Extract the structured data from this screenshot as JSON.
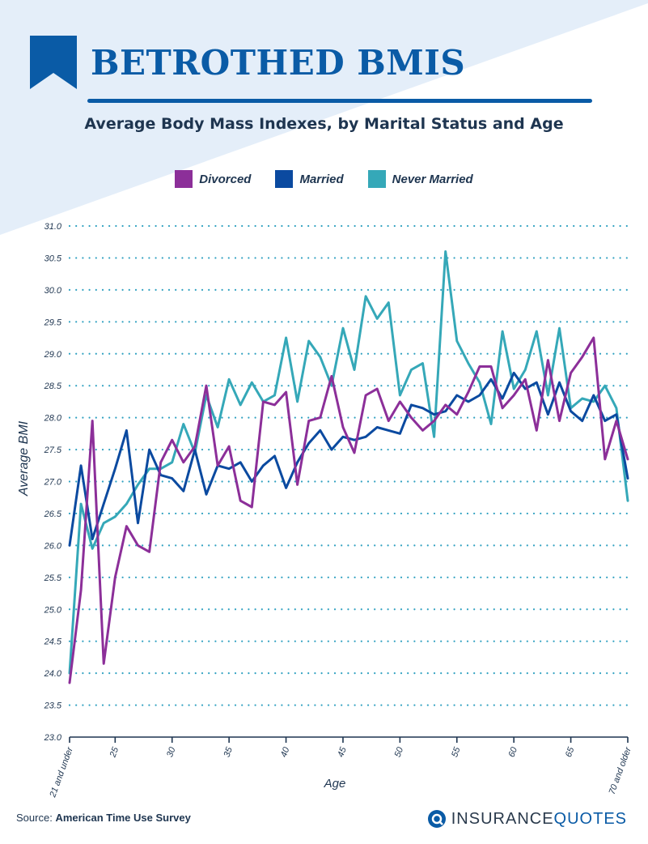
{
  "header": {
    "title": "BETROTHED BMIS",
    "subtitle": "Average Body Mass Indexes, by Marital Status and Age"
  },
  "colors": {
    "brand": "#0a5ba6",
    "background_tint": "#e4eef9",
    "divorced": "#8c2f99",
    "married": "#0b4aa0",
    "never_married": "#35a8b8"
  },
  "chart_data": {
    "type": "line",
    "xlabel": "Age",
    "ylabel": "Average BMI",
    "ylim": [
      23.0,
      31.0
    ],
    "yticks": [
      "23.0",
      "23.5",
      "24.0",
      "24.5",
      "25.0",
      "25.5",
      "26.0",
      "26.5",
      "27.0",
      "27.5",
      "28.0",
      "28.5",
      "29.0",
      "29.5",
      "30.0",
      "30.5",
      "31.0"
    ],
    "xlim": [
      21,
      70
    ],
    "xticks": [
      {
        "x": 21,
        "label": "21 and under"
      },
      {
        "x": 25,
        "label": "25"
      },
      {
        "x": 30,
        "label": "30"
      },
      {
        "x": 35,
        "label": "35"
      },
      {
        "x": 40,
        "label": "40"
      },
      {
        "x": 45,
        "label": "45"
      },
      {
        "x": 50,
        "label": "50"
      },
      {
        "x": 55,
        "label": "55"
      },
      {
        "x": 60,
        "label": "60"
      },
      {
        "x": 65,
        "label": "65"
      },
      {
        "x": 70,
        "label": "70 and older"
      }
    ],
    "grid": "horizontal dotted",
    "legend_position": "top-center",
    "x": [
      21,
      22,
      23,
      24,
      25,
      26,
      27,
      28,
      29,
      30,
      31,
      32,
      33,
      34,
      35,
      36,
      37,
      38,
      39,
      40,
      41,
      42,
      43,
      44,
      45,
      46,
      47,
      48,
      49,
      50,
      51,
      52,
      53,
      54,
      55,
      56,
      57,
      58,
      59,
      60,
      61,
      62,
      63,
      64,
      65,
      66,
      67,
      68,
      69,
      70
    ],
    "series": [
      {
        "name": "Divorced",
        "color": "#8c2f99",
        "values": [
          23.85,
          25.3,
          27.95,
          24.15,
          25.5,
          26.3,
          26.0,
          25.9,
          27.3,
          27.65,
          27.3,
          27.55,
          28.5,
          27.25,
          27.55,
          26.7,
          26.6,
          28.25,
          28.2,
          28.4,
          26.95,
          27.95,
          28.0,
          28.65,
          27.85,
          27.45,
          28.35,
          28.45,
          27.95,
          28.25,
          28.0,
          27.8,
          27.95,
          28.2,
          28.05,
          28.4,
          28.8,
          28.8,
          28.15,
          28.35,
          28.6,
          27.8,
          28.9,
          27.95,
          28.7,
          28.95,
          29.25,
          27.35,
          27.95,
          27.35
        ]
      },
      {
        "name": "Married",
        "color": "#0b4aa0",
        "values": [
          26.0,
          27.25,
          26.1,
          26.65,
          27.2,
          27.8,
          26.35,
          27.5,
          27.1,
          27.05,
          26.85,
          27.5,
          26.8,
          27.25,
          27.2,
          27.3,
          27.0,
          27.25,
          27.4,
          26.9,
          27.3,
          27.6,
          27.8,
          27.5,
          27.7,
          27.65,
          27.7,
          27.85,
          27.8,
          27.75,
          28.2,
          28.15,
          28.05,
          28.1,
          28.35,
          28.25,
          28.35,
          28.6,
          28.3,
          28.7,
          28.45,
          28.55,
          28.05,
          28.55,
          28.1,
          27.95,
          28.35,
          27.95,
          28.05,
          27.05
        ]
      },
      {
        "name": "Never Married",
        "color": "#35a8b8",
        "values": [
          24.0,
          26.65,
          25.95,
          26.35,
          26.45,
          26.65,
          26.95,
          27.2,
          27.2,
          27.3,
          27.9,
          27.45,
          28.35,
          27.85,
          28.6,
          28.2,
          28.55,
          28.25,
          28.35,
          29.25,
          28.25,
          29.2,
          28.95,
          28.5,
          29.4,
          28.75,
          29.9,
          29.55,
          29.8,
          28.35,
          28.75,
          28.85,
          27.7,
          30.6,
          29.2,
          28.85,
          28.55,
          27.9,
          29.35,
          28.45,
          28.75,
          29.35,
          28.35,
          29.4,
          28.15,
          28.3,
          28.25,
          28.5,
          28.15,
          26.7
        ]
      }
    ]
  },
  "footer": {
    "source_label": "Source:",
    "source_name": "American Time Use Survey",
    "logo_word_1": "INSURANCE",
    "logo_word_2": "QUOTES"
  }
}
